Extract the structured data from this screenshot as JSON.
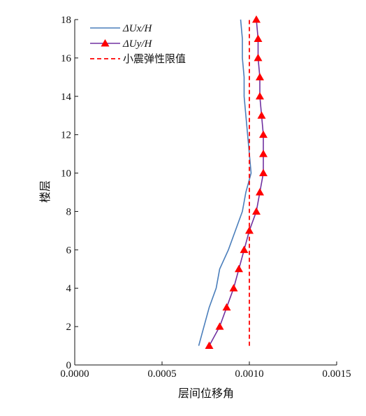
{
  "chart_data": {
    "type": "line",
    "xlabel": "层间位移角",
    "ylabel": "楼层",
    "xlim": [
      0,
      0.0015
    ],
    "ylim": [
      0,
      18
    ],
    "x_ticks": [
      0,
      0.0005,
      0.001,
      0.0015
    ],
    "x_tick_labels": [
      "0.0000",
      "0.0005",
      "0.0010",
      "0.0015"
    ],
    "y_ticks": [
      0,
      2,
      4,
      6,
      8,
      10,
      12,
      14,
      16,
      18
    ],
    "y_tick_labels": [
      "0",
      "2",
      "4",
      "6",
      "8",
      "10",
      "12",
      "14",
      "16",
      "18"
    ],
    "grid": false,
    "legend_position": "top-left",
    "series": [
      {
        "name": "ΔUx/H",
        "color": "#4a7ebb",
        "marker": "none",
        "points": [
          [
            0.00071,
            1
          ],
          [
            0.00074,
            2
          ],
          [
            0.00077,
            3
          ],
          [
            0.00081,
            4
          ],
          [
            0.00083,
            5
          ],
          [
            0.00088,
            6
          ],
          [
            0.00092,
            7
          ],
          [
            0.00096,
            8
          ],
          [
            0.00098,
            9
          ],
          [
            0.00101,
            10
          ],
          [
            0.001,
            11
          ],
          [
            0.00099,
            12
          ],
          [
            0.00098,
            13
          ],
          [
            0.00097,
            14
          ],
          [
            0.00097,
            15
          ],
          [
            0.00096,
            16
          ],
          [
            0.00096,
            17
          ],
          [
            0.00095,
            18
          ]
        ]
      },
      {
        "name": "ΔUy/H",
        "color": "#7030a0",
        "marker": "triangle",
        "marker_color": "#ff0000",
        "points": [
          [
            0.00077,
            1
          ],
          [
            0.00083,
            2
          ],
          [
            0.00087,
            3
          ],
          [
            0.00091,
            4
          ],
          [
            0.00094,
            5
          ],
          [
            0.00097,
            6
          ],
          [
            0.001,
            7
          ],
          [
            0.00104,
            8
          ],
          [
            0.00106,
            9
          ],
          [
            0.00108,
            10
          ],
          [
            0.00108,
            11
          ],
          [
            0.00108,
            12
          ],
          [
            0.00107,
            13
          ],
          [
            0.00106,
            14
          ],
          [
            0.00106,
            15
          ],
          [
            0.00105,
            16
          ],
          [
            0.00105,
            17
          ],
          [
            0.00104,
            18
          ]
        ]
      },
      {
        "name": "小震弹性限值",
        "color": "#ff0000",
        "marker": "none",
        "dash": true,
        "points": [
          [
            0.001,
            1
          ],
          [
            0.001,
            18
          ]
        ]
      }
    ]
  }
}
